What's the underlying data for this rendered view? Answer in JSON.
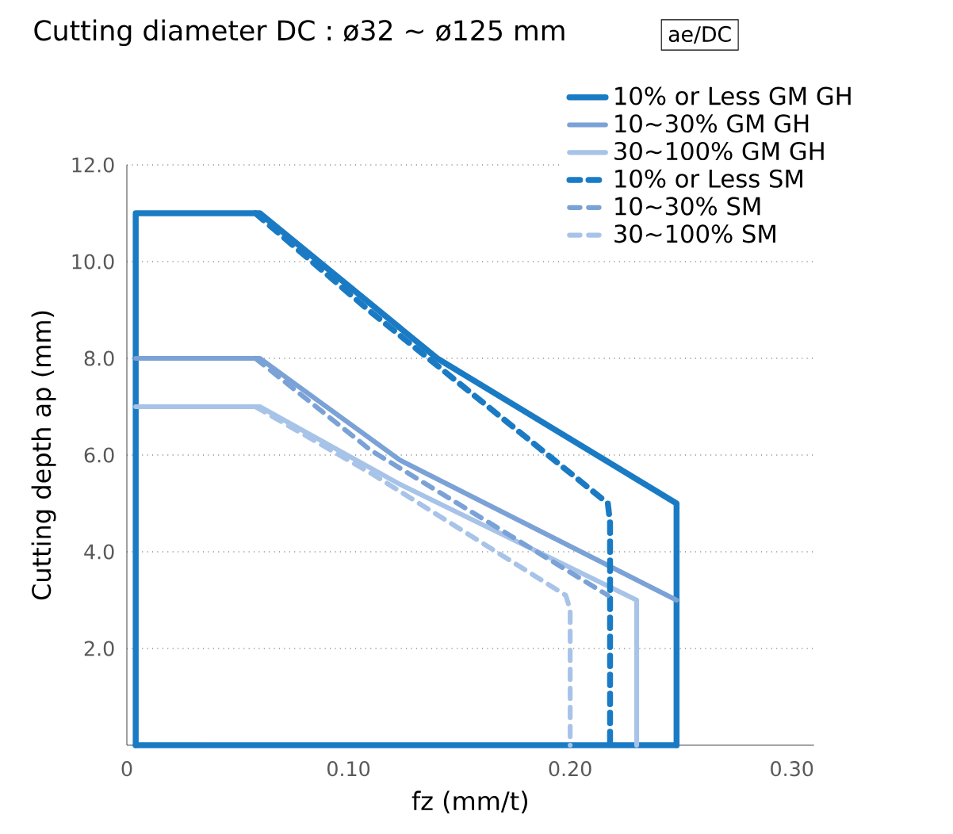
{
  "chart_data": {
    "type": "line",
    "title": "Cutting diameter DC :    ø32 ~ ø125 mm",
    "legend_title": "ae/DC",
    "xlabel": "fz (mm/t)",
    "ylabel": "Cutting depth ap (mm)",
    "xlim": [
      0,
      0.31
    ],
    "ylim": [
      0,
      12
    ],
    "xticks": [
      0,
      {
        "value": 0.1,
        "label": "0.10"
      },
      {
        "value": 0.2,
        "label": "0.20"
      },
      {
        "value": 0.3,
        "label": "0.30"
      }
    ],
    "yticks": [
      {
        "value": 2,
        "label": "2.0"
      },
      {
        "value": 4,
        "label": "4.0"
      },
      {
        "value": 6,
        "label": "6.0"
      },
      {
        "value": 8,
        "label": "8.0"
      },
      {
        "value": 10,
        "label": "10.0"
      },
      {
        "value": 12,
        "label": "12.0"
      }
    ],
    "grid": "y",
    "legend": "top right",
    "series": [
      {
        "name": "10% or Less   GM GH",
        "color": "#1a7bc4",
        "line_style": "solid",
        "x": [
          0.004,
          0.004,
          0.06,
          0.14,
          0.248,
          0.248
        ],
        "values": [
          0,
          11,
          11,
          8.0,
          5.0,
          0
        ]
      },
      {
        "color": "#1a7bc4",
        "line_style": "solid",
        "x": [
          0.004,
          0.248
        ],
        "values": [
          0,
          0
        ]
      },
      {
        "name": "10~30%          GM GH",
        "color": "#7ba2d6",
        "line_style": "solid",
        "x": [
          0.004,
          0.06,
          0.123,
          0.248
        ],
        "values": [
          8,
          8,
          5.9,
          3.0
        ]
      },
      {
        "name": "30~100%        GM GH",
        "color": "#a8c3e8",
        "line_style": "solid",
        "x": [
          0.004,
          0.06,
          0.123,
          0.23,
          0.23
        ],
        "values": [
          7,
          7,
          5.4,
          3.0,
          0
        ]
      },
      {
        "name": "10% or Less   SM",
        "color": "#1a7bc4",
        "line_style": "dashed",
        "x": [
          0.058,
          0.109,
          0.217,
          0.218,
          0.218
        ],
        "values": [
          11,
          9.0,
          5.0,
          4.6,
          0
        ]
      },
      {
        "name": "10~30%          SM",
        "color": "#7ba2d6",
        "line_style": "dashed",
        "x": [
          0.058,
          0.11,
          0.217
        ],
        "values": [
          8,
          6.1,
          3.1
        ]
      },
      {
        "name": "30~100%        SM",
        "color": "#a8c3e8",
        "line_style": "dashed",
        "x": [
          0.058,
          0.111,
          0.198,
          0.2,
          0.2
        ],
        "values": [
          7,
          5.6,
          3.1,
          2.8,
          0
        ]
      }
    ]
  }
}
